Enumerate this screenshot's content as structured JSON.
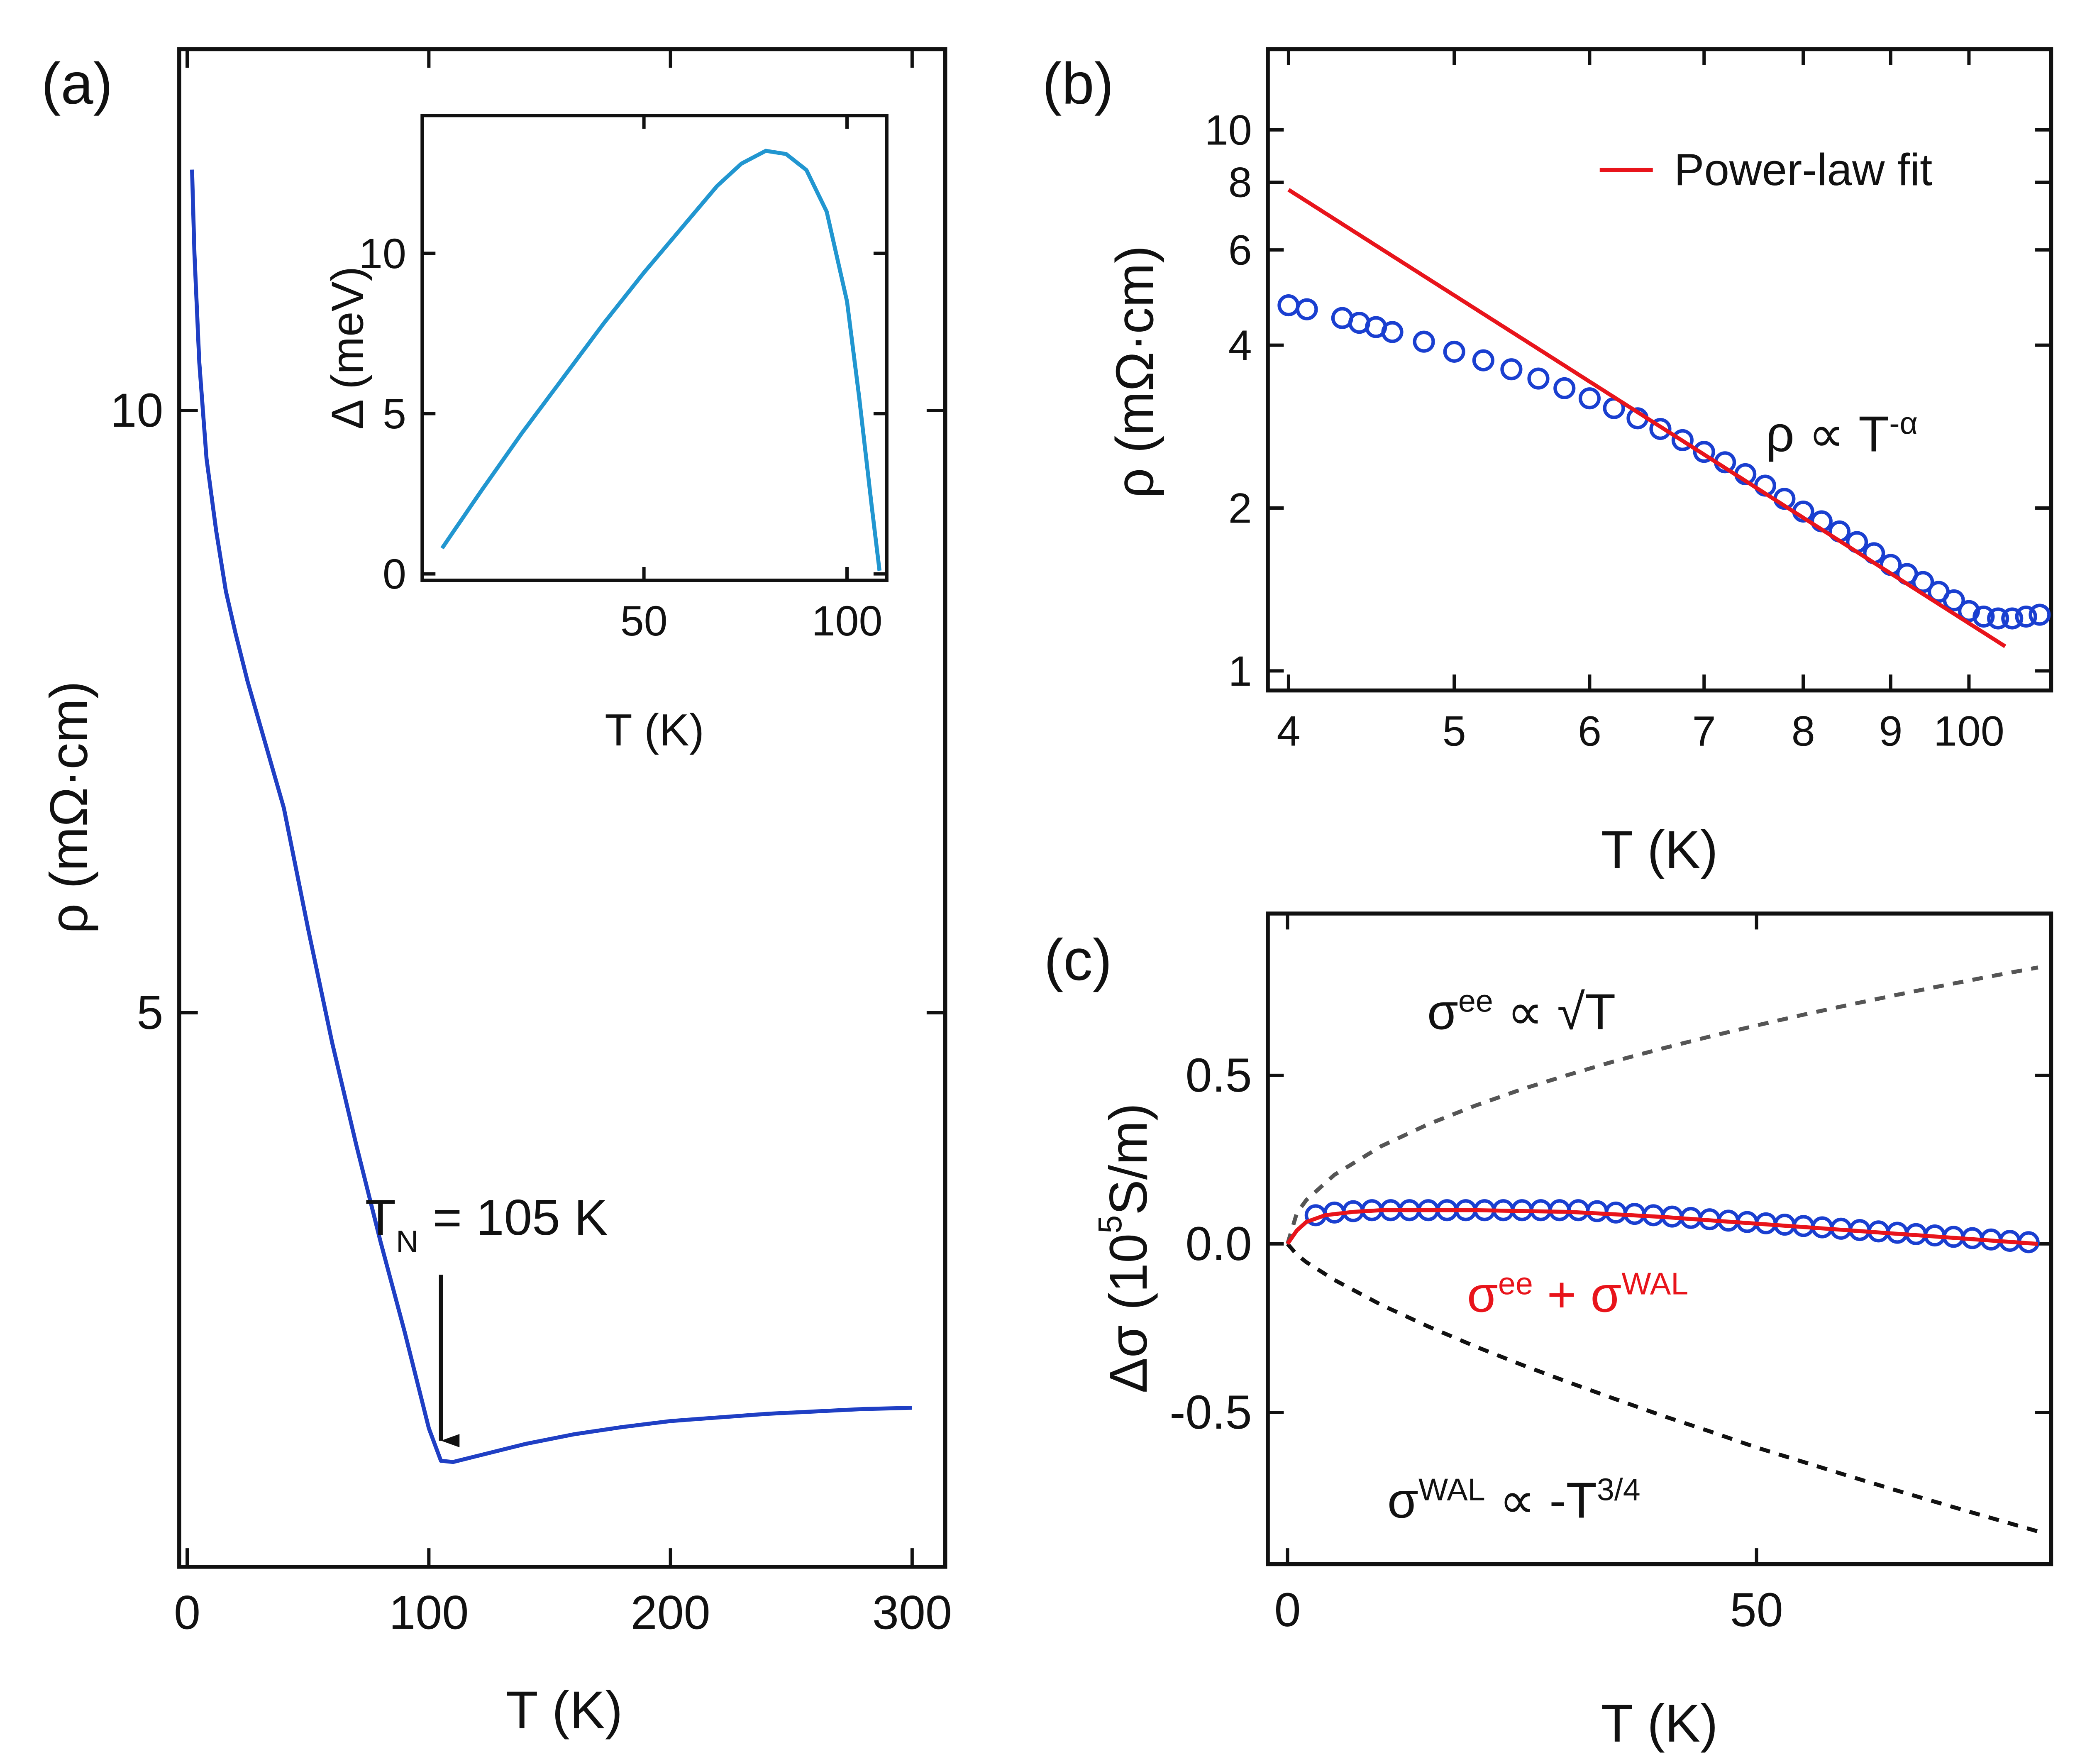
{
  "chart_data": [
    {
      "type": "line",
      "label": "(a)",
      "xlabel": "T (K)",
      "ylabel": "ρ (mΩ·cm)",
      "xlim": [
        -3.3,
        313.7
      ],
      "ylim": [
        0.4,
        13.0
      ],
      "xticks": [
        0,
        100,
        200,
        300
      ],
      "yticks": [
        5,
        10
      ],
      "series": [
        {
          "color": "#1f3fc4",
          "mode": "line",
          "x": [
            2,
            3,
            5,
            8,
            12,
            16,
            20,
            25,
            30,
            40,
            50,
            60,
            70,
            80,
            90,
            95,
            100,
            105,
            110,
            120,
            140,
            160,
            180,
            200,
            220,
            240,
            260,
            280,
            300
          ],
          "values": [
            12.0,
            11.3,
            10.4,
            9.6,
            9.0,
            8.5,
            8.15,
            7.75,
            7.4,
            6.7,
            5.7,
            4.75,
            3.9,
            3.1,
            2.35,
            1.95,
            1.55,
            1.28,
            1.27,
            1.32,
            1.42,
            1.5,
            1.56,
            1.61,
            1.64,
            1.67,
            1.69,
            1.71,
            1.72
          ]
        }
      ],
      "annotations": [
        {
          "parts": [
            {
              "text": "T"
            },
            {
              "text": "N",
              "sub": true
            },
            {
              "text": " = 105 K"
            }
          ],
          "x": 105
        }
      ]
    },
    {
      "type": "line",
      "xlabel": "T (K)",
      "ylabel": "Δ (meV)",
      "xlim": [
        -4.6,
        109.8
      ],
      "ylim": [
        -0.2,
        14.3
      ],
      "xticks": [
        50,
        100
      ],
      "yticks": [
        0,
        5,
        10
      ],
      "series": [
        {
          "color": "#2196d0",
          "mode": "line",
          "x": [
            0.3,
            10,
            20,
            30,
            40,
            50,
            60,
            68,
            74,
            80,
            85,
            90,
            95,
            100,
            103,
            106,
            108
          ],
          "values": [
            0.8,
            2.6,
            4.4,
            6.1,
            7.8,
            9.4,
            10.9,
            12.1,
            12.8,
            13.2,
            13.1,
            12.6,
            11.3,
            8.5,
            5.5,
            2.2,
            0.1
          ]
        }
      ]
    },
    {
      "type": "scatter",
      "label": "(b)",
      "xlabel": "T (K)",
      "ylabel": "ρ (mΩ·cm)",
      "xlog": true,
      "ylog": true,
      "xlim": [
        38.9,
        111.7
      ],
      "ylim": [
        0.92,
        14.1
      ],
      "xticks": [
        {
          "value": 40,
          "label": "4"
        },
        {
          "value": 50,
          "label": "5"
        },
        {
          "value": 60,
          "label": "6"
        },
        {
          "value": 70,
          "label": "7"
        },
        {
          "value": 80,
          "label": "8"
        },
        {
          "value": 90,
          "label": "9"
        },
        100
      ],
      "yticks": [
        1,
        2,
        4,
        6,
        8,
        10
      ],
      "series": [
        {
          "color": "#1a3fd0",
          "mode": "markers",
          "x": [
            40,
            41,
            43,
            44,
            45,
            46,
            48,
            50,
            52,
            54,
            56,
            58,
            60,
            62,
            64,
            66,
            68,
            70,
            72,
            74,
            76,
            78,
            80,
            82,
            84,
            86,
            88,
            90,
            92,
            94,
            96,
            98,
            100,
            102,
            104,
            106,
            108,
            110
          ],
          "values": [
            4.74,
            4.66,
            4.49,
            4.4,
            4.32,
            4.23,
            4.06,
            3.89,
            3.75,
            3.61,
            3.47,
            3.33,
            3.19,
            3.06,
            2.93,
            2.8,
            2.67,
            2.54,
            2.43,
            2.31,
            2.2,
            2.08,
            1.97,
            1.89,
            1.81,
            1.73,
            1.65,
            1.57,
            1.51,
            1.46,
            1.4,
            1.35,
            1.29,
            1.26,
            1.25,
            1.25,
            1.26,
            1.27
          ]
        },
        {
          "name": "Power-law fit",
          "color": "#e8141b",
          "mode": "line",
          "x": [
            40,
            105
          ],
          "values": [
            7.75,
            1.11
          ]
        }
      ],
      "annotations": [
        {
          "parts": [
            {
              "text": "ρ ∝ T"
            },
            {
              "text": "-α",
              "sup": true
            }
          ]
        }
      ]
    },
    {
      "type": "scatter",
      "label": "(c)",
      "xlabel": "T (K)",
      "ylabel": [
        {
          "text": "Δσ (10"
        },
        {
          "text": "5",
          "sup": true
        },
        {
          "text": "S/m)"
        }
      ],
      "xlim": [
        -2.1,
        81.4
      ],
      "ylim": [
        -0.95,
        0.98
      ],
      "xticks": [
        0,
        50
      ],
      "yticks": [
        0.5,
        {
          "value": 0,
          "label": "0.0"
        },
        -0.5
      ],
      "series": [
        {
          "color": "#555555",
          "mode": "dashed",
          "x": [
            0,
            1,
            2,
            5,
            10,
            15,
            20,
            25,
            30,
            35,
            40,
            45,
            50,
            55,
            60,
            65,
            70,
            75,
            80
          ],
          "values": [
            0,
            0.092,
            0.13,
            0.205,
            0.29,
            0.355,
            0.41,
            0.459,
            0.502,
            0.543,
            0.58,
            0.615,
            0.648,
            0.68,
            0.71,
            0.739,
            0.767,
            0.794,
            0.82
          ]
        },
        {
          "color": "#111111",
          "mode": "dashed",
          "x": [
            0,
            1,
            2,
            5,
            10,
            15,
            20,
            25,
            30,
            35,
            40,
            45,
            50,
            55,
            60,
            65,
            70,
            75,
            80
          ],
          "values": [
            0,
            -0.032,
            -0.054,
            -0.107,
            -0.181,
            -0.245,
            -0.304,
            -0.359,
            -0.411,
            -0.461,
            -0.51,
            -0.556,
            -0.604,
            -0.647,
            -0.69,
            -0.732,
            -0.773,
            -0.813,
            -0.853
          ]
        },
        {
          "color": "#1a3fd0",
          "mode": "markers",
          "x": [
            3,
            5,
            7,
            9,
            11,
            13,
            15,
            17,
            19,
            21,
            23,
            25,
            27,
            29,
            31,
            33,
            35,
            37,
            39,
            41,
            43,
            45,
            47,
            49,
            51,
            53,
            55,
            57,
            59,
            61,
            63,
            65,
            67,
            69,
            71,
            73,
            75,
            77,
            79
          ],
          "values": [
            0.085,
            0.093,
            0.097,
            0.1,
            0.1,
            0.1,
            0.1,
            0.1,
            0.1,
            0.1,
            0.1,
            0.1,
            0.1,
            0.1,
            0.1,
            0.097,
            0.093,
            0.089,
            0.085,
            0.081,
            0.077,
            0.073,
            0.069,
            0.065,
            0.061,
            0.057,
            0.053,
            0.049,
            0.045,
            0.041,
            0.037,
            0.033,
            0.029,
            0.025,
            0.021,
            0.017,
            0.013,
            0.009,
            0.005
          ]
        },
        {
          "color": "#e8141b",
          "mode": "line",
          "x": [
            0,
            1,
            2,
            4,
            7,
            10,
            20,
            30,
            40,
            50,
            60,
            70,
            80
          ],
          "values": [
            0,
            0.04,
            0.065,
            0.085,
            0.095,
            0.1,
            0.1,
            0.095,
            0.08,
            0.06,
            0.04,
            0.02,
            0.0
          ]
        }
      ],
      "annotations": [
        {
          "parts": [
            {
              "text": "σ"
            },
            {
              "text": "ee",
              "sup": true
            },
            {
              "text": " ∝ √T"
            }
          ]
        },
        {
          "color": "#e8141b",
          "parts": [
            {
              "text": "σ"
            },
            {
              "text": "ee",
              "sup": true
            },
            {
              "text": " + σ"
            },
            {
              "text": "WAL",
              "sup": true
            }
          ]
        },
        {
          "parts": [
            {
              "text": "σ"
            },
            {
              "text": "WAL",
              "sup": true
            },
            {
              "text": " ∝ -T"
            },
            {
              "text": "3/4",
              "sup": true
            }
          ]
        }
      ]
    }
  ]
}
